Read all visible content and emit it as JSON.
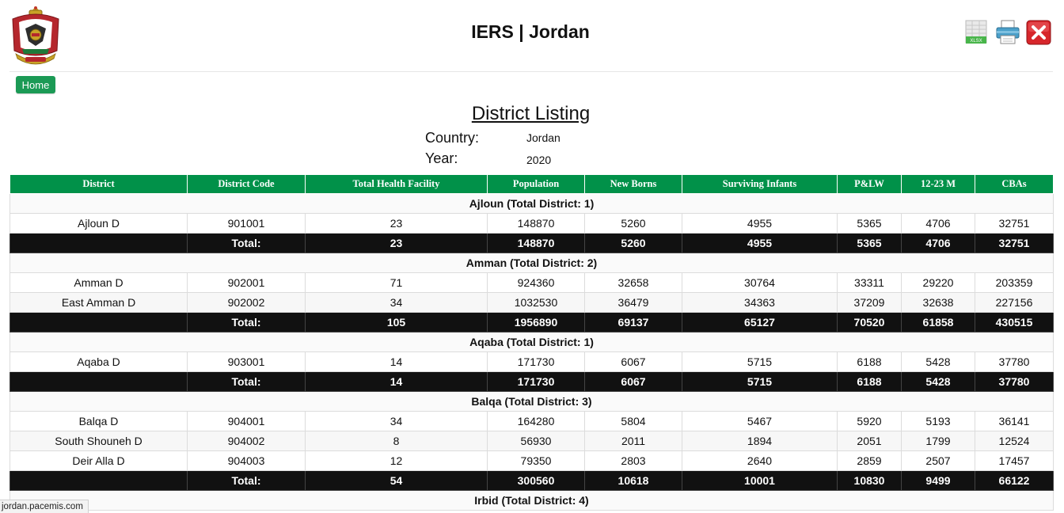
{
  "app": {
    "title": "IERS | Jordan"
  },
  "nav": {
    "home_label": "Home"
  },
  "toolbar": {
    "xlsx_icon_text": "XLSX",
    "icons": [
      "xlsx-export-icon",
      "printer-icon",
      "close-icon"
    ]
  },
  "report": {
    "title": "District Listing",
    "country_label": "Country:",
    "country_value": "Jordan",
    "year_label": "Year:",
    "year_value": "2020"
  },
  "colors": {
    "header_green": "#019149",
    "home_green": "#1b9a55",
    "total_black": "#111111"
  },
  "table": {
    "columns": [
      "District",
      "District Code",
      "Total Health Facility",
      "Population",
      "New Borns",
      "Surviving Infants",
      "P&LW",
      "12-23 M",
      "CBAs"
    ],
    "total_label": "Total:",
    "groups": [
      {
        "title": "Ajloun (Total District: 1)",
        "rows": [
          [
            "Ajloun D",
            "901001",
            "23",
            "148870",
            "5260",
            "4955",
            "5365",
            "4706",
            "32751"
          ]
        ],
        "total": [
          "23",
          "148870",
          "5260",
          "4955",
          "5365",
          "4706",
          "32751"
        ]
      },
      {
        "title": "Amman (Total District: 2)",
        "rows": [
          [
            "Amman D",
            "902001",
            "71",
            "924360",
            "32658",
            "30764",
            "33311",
            "29220",
            "203359"
          ],
          [
            "East Amman D",
            "902002",
            "34",
            "1032530",
            "36479",
            "34363",
            "37209",
            "32638",
            "227156"
          ]
        ],
        "total": [
          "105",
          "1956890",
          "69137",
          "65127",
          "70520",
          "61858",
          "430515"
        ]
      },
      {
        "title": "Aqaba (Total District: 1)",
        "rows": [
          [
            "Aqaba D",
            "903001",
            "14",
            "171730",
            "6067",
            "5715",
            "6188",
            "5428",
            "37780"
          ]
        ],
        "total": [
          "14",
          "171730",
          "6067",
          "5715",
          "6188",
          "5428",
          "37780"
        ]
      },
      {
        "title": "Balqa (Total District: 3)",
        "rows": [
          [
            "Balqa D",
            "904001",
            "34",
            "164280",
            "5804",
            "5467",
            "5920",
            "5193",
            "36141"
          ],
          [
            "South Shouneh D",
            "904002",
            "8",
            "56930",
            "2011",
            "1894",
            "2051",
            "1799",
            "12524"
          ],
          [
            "Deir Alla D",
            "904003",
            "12",
            "79350",
            "2803",
            "2640",
            "2859",
            "2507",
            "17457"
          ]
        ],
        "total": [
          "54",
          "300560",
          "10618",
          "10001",
          "10830",
          "9499",
          "66122"
        ]
      },
      {
        "title": "Irbid (Total District: 4)",
        "rows": [],
        "total": null
      }
    ]
  },
  "status_bar": {
    "url": "jordan.pacemis.com"
  }
}
